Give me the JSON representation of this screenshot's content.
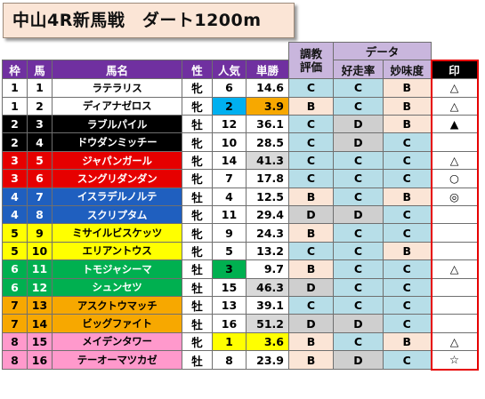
{
  "title": "中山4R新馬戦　ダート1200m",
  "header": {
    "group_training": [
      "調教",
      "評価"
    ],
    "group_data": "データ",
    "frame": "枠",
    "horse_no": "馬",
    "horse_name": "馬名",
    "sex": "性",
    "popularity": "人気",
    "odds": "単勝",
    "win_rate": "好走率",
    "taste": "妙味度",
    "mark": "印"
  },
  "colors": {
    "header_purple": "#7030a0",
    "header_light_purple": "#c9b6dd",
    "title_bg": "#fbe5d6",
    "grade_C": "#b7dee8",
    "grade_B": "#fbe5d6",
    "grade_D": "#cfcfcf",
    "mark_border": "#e60000"
  },
  "rows": [
    {
      "frame": "1",
      "no": "1",
      "name": "ラテラリス",
      "sex": "牝",
      "pop": "6",
      "odds": "14.6",
      "train": "C",
      "rate": "C",
      "taste": "B",
      "mark": "△"
    },
    {
      "frame": "1",
      "no": "2",
      "name": "ディアナゼロス",
      "sex": "牝",
      "pop": "2",
      "odds": "3.9",
      "train": "B",
      "rate": "C",
      "taste": "B",
      "mark": "△"
    },
    {
      "frame": "2",
      "no": "3",
      "name": "ラブルパイル",
      "sex": "牡",
      "pop": "12",
      "odds": "36.1",
      "train": "C",
      "rate": "D",
      "taste": "B",
      "mark": "▲"
    },
    {
      "frame": "2",
      "no": "4",
      "name": "ドウダンミッチー",
      "sex": "牝",
      "pop": "10",
      "odds": "28.5",
      "train": "C",
      "rate": "D",
      "taste": "C",
      "mark": ""
    },
    {
      "frame": "3",
      "no": "5",
      "name": "ジャパンガール",
      "sex": "牝",
      "pop": "14",
      "odds": "41.3",
      "train": "C",
      "rate": "C",
      "taste": "C",
      "mark": "△"
    },
    {
      "frame": "3",
      "no": "6",
      "name": "スングリダンダン",
      "sex": "牝",
      "pop": "7",
      "odds": "17.8",
      "train": "C",
      "rate": "C",
      "taste": "C",
      "mark": "○"
    },
    {
      "frame": "4",
      "no": "7",
      "name": "イスラデルノルテ",
      "sex": "牡",
      "pop": "4",
      "odds": "12.5",
      "train": "B",
      "rate": "C",
      "taste": "B",
      "mark": "◎"
    },
    {
      "frame": "4",
      "no": "8",
      "name": "スクリプタム",
      "sex": "牝",
      "pop": "11",
      "odds": "29.4",
      "train": "D",
      "rate": "D",
      "taste": "C",
      "mark": ""
    },
    {
      "frame": "5",
      "no": "9",
      "name": "ミサイルビスケッツ",
      "sex": "牝",
      "pop": "9",
      "odds": "24.3",
      "train": "B",
      "rate": "C",
      "taste": "C",
      "mark": ""
    },
    {
      "frame": "5",
      "no": "10",
      "name": "エリアントウス",
      "sex": "牝",
      "pop": "5",
      "odds": "13.2",
      "train": "C",
      "rate": "C",
      "taste": "B",
      "mark": ""
    },
    {
      "frame": "6",
      "no": "11",
      "name": "トモジャシーマ",
      "sex": "牡",
      "pop": "3",
      "odds": "9.7",
      "train": "B",
      "rate": "C",
      "taste": "C",
      "mark": "△"
    },
    {
      "frame": "6",
      "no": "12",
      "name": "シュンセツ",
      "sex": "牡",
      "pop": "15",
      "odds": "46.3",
      "train": "D",
      "rate": "C",
      "taste": "C",
      "mark": ""
    },
    {
      "frame": "7",
      "no": "13",
      "name": "アスクトウマッチ",
      "sex": "牡",
      "pop": "13",
      "odds": "39.1",
      "train": "C",
      "rate": "C",
      "taste": "C",
      "mark": ""
    },
    {
      "frame": "7",
      "no": "14",
      "name": "ビッグファイト",
      "sex": "牡",
      "pop": "16",
      "odds": "51.2",
      "train": "D",
      "rate": "D",
      "taste": "C",
      "mark": ""
    },
    {
      "frame": "8",
      "no": "15",
      "name": "メイデンタワー",
      "sex": "牝",
      "pop": "1",
      "odds": "3.6",
      "train": "B",
      "rate": "C",
      "taste": "B",
      "mark": "△"
    },
    {
      "frame": "8",
      "no": "16",
      "name": "テーオーマツカゼ",
      "sex": "牡",
      "pop": "8",
      "odds": "23.9",
      "train": "B",
      "rate": "D",
      "taste": "C",
      "mark": "☆"
    }
  ]
}
